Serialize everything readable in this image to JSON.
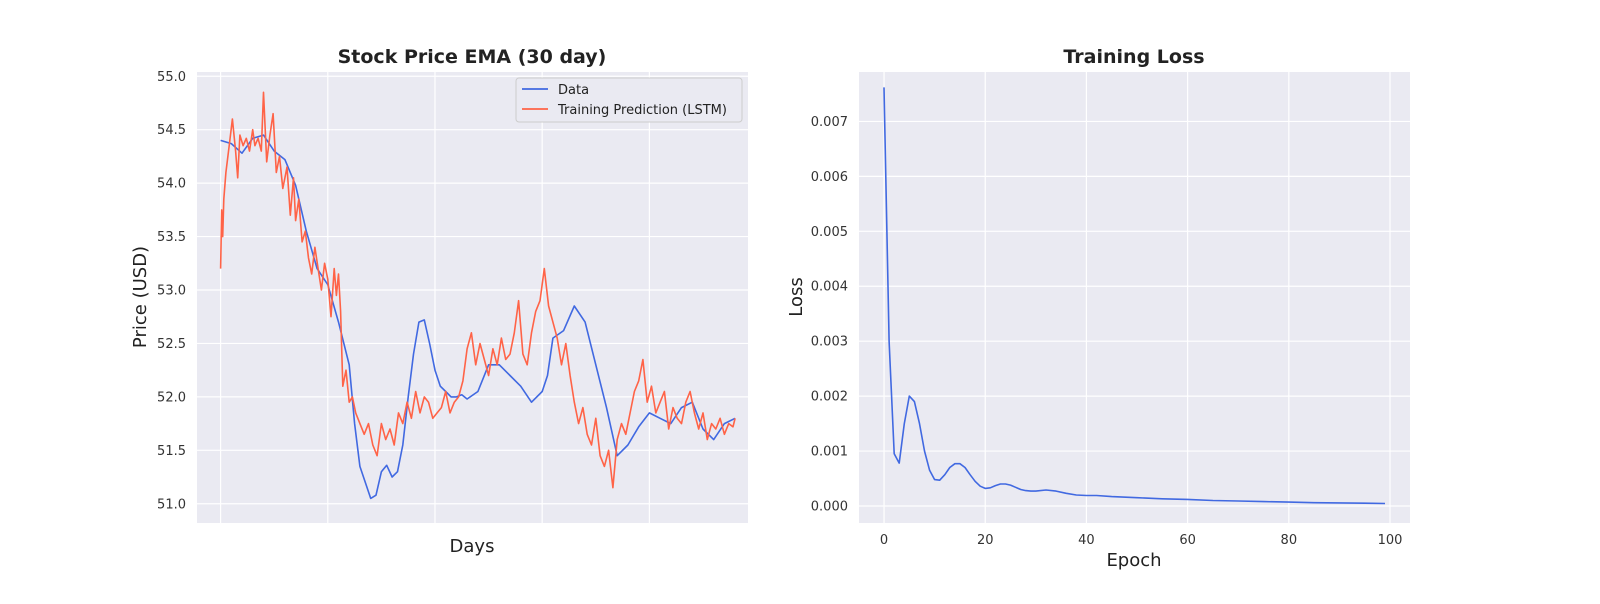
{
  "chart_data": [
    {
      "type": "line",
      "title": "Stock Price EMA (30 day)",
      "xlabel": "Days",
      "ylabel": "Price (USD)",
      "ylim": [
        50.82,
        55.04
      ],
      "xlim": [
        -22,
        492
      ],
      "yticks": [
        "51.0",
        "51.5",
        "52.0",
        "52.5",
        "53.0",
        "53.5",
        "54.0",
        "54.5",
        "55.0"
      ],
      "ytick_values": [
        51.0,
        51.5,
        52.0,
        52.5,
        53.0,
        53.5,
        54.0,
        54.5,
        55.0
      ],
      "xgrid_values": [
        0,
        100,
        200,
        300,
        400
      ],
      "grid": true,
      "legend": "top-right",
      "series": [
        {
          "name": "Data",
          "color": "#4169E1",
          "x": [
            0,
            10,
            20,
            30,
            40,
            50,
            60,
            70,
            80,
            90,
            100,
            110,
            120,
            125,
            130,
            140,
            145,
            150,
            155,
            160,
            165,
            170,
            175,
            180,
            185,
            190,
            195,
            200,
            205,
            210,
            215,
            220,
            225,
            230,
            240,
            250,
            260,
            270,
            280,
            290,
            300,
            305,
            310,
            320,
            330,
            340,
            350,
            360,
            370,
            380,
            390,
            400,
            410,
            420,
            430,
            440,
            450,
            460,
            470,
            480
          ],
          "values": [
            54.4,
            54.37,
            54.28,
            54.42,
            54.45,
            54.3,
            54.22,
            53.98,
            53.55,
            53.2,
            53.05,
            52.7,
            52.3,
            51.75,
            51.35,
            51.05,
            51.08,
            51.3,
            51.36,
            51.25,
            51.3,
            51.55,
            52.0,
            52.4,
            52.7,
            52.72,
            52.5,
            52.25,
            52.1,
            52.05,
            52.0,
            52.0,
            52.02,
            51.98,
            52.05,
            52.3,
            52.3,
            52.2,
            52.1,
            51.95,
            52.05,
            52.2,
            52.55,
            52.62,
            52.85,
            52.7,
            52.3,
            51.9,
            51.45,
            51.55,
            51.72,
            51.85,
            51.8,
            51.75,
            51.9,
            51.95,
            51.7,
            51.6,
            51.75,
            51.8
          ]
        },
        {
          "name": "Training Prediction (LSTM)",
          "color": "#FF6347",
          "x": [
            0,
            1,
            2,
            3,
            5,
            8,
            11,
            14,
            16,
            18,
            21,
            24,
            27,
            30,
            32,
            35,
            38,
            40,
            43,
            46,
            49,
            52,
            55,
            58,
            62,
            65,
            68,
            70,
            73,
            76,
            79,
            82,
            85,
            88,
            91,
            94,
            97,
            100,
            103,
            106,
            108,
            110,
            112,
            114,
            117,
            120,
            123,
            126,
            130,
            134,
            138,
            142,
            146,
            150,
            154,
            158,
            162,
            166,
            170,
            174,
            178,
            182,
            186,
            190,
            194,
            198,
            202,
            206,
            210,
            214,
            218,
            222,
            226,
            230,
            234,
            238,
            242,
            246,
            250,
            254,
            258,
            262,
            266,
            270,
            274,
            278,
            282,
            286,
            290,
            294,
            298,
            302,
            306,
            310,
            314,
            318,
            322,
            326,
            330,
            334,
            338,
            342,
            346,
            350,
            354,
            358,
            362,
            366,
            370,
            374,
            378,
            382,
            386,
            390,
            394,
            398,
            402,
            406,
            410,
            414,
            418,
            422,
            426,
            430,
            434,
            438,
            442,
            446,
            450,
            454,
            458,
            462,
            466,
            470,
            474,
            478,
            480
          ],
          "values": [
            53.2,
            53.75,
            53.5,
            53.85,
            54.1,
            54.35,
            54.6,
            54.3,
            54.05,
            54.45,
            54.35,
            54.42,
            54.3,
            54.5,
            54.35,
            54.42,
            54.3,
            54.85,
            54.2,
            54.45,
            54.65,
            54.1,
            54.25,
            53.95,
            54.15,
            53.7,
            54.05,
            53.65,
            53.85,
            53.45,
            53.55,
            53.3,
            53.15,
            53.4,
            53.2,
            53.0,
            53.25,
            53.1,
            52.75,
            53.2,
            52.95,
            53.15,
            52.8,
            52.1,
            52.25,
            51.95,
            52.0,
            51.85,
            51.75,
            51.65,
            51.75,
            51.55,
            51.45,
            51.75,
            51.6,
            51.7,
            51.55,
            51.85,
            51.75,
            51.95,
            51.8,
            52.05,
            51.85,
            52.0,
            51.95,
            51.8,
            51.85,
            51.9,
            52.05,
            51.85,
            51.95,
            52.0,
            52.15,
            52.45,
            52.6,
            52.3,
            52.5,
            52.35,
            52.2,
            52.45,
            52.3,
            52.55,
            52.35,
            52.4,
            52.6,
            52.9,
            52.4,
            52.3,
            52.6,
            52.8,
            52.9,
            53.2,
            52.85,
            52.7,
            52.55,
            52.3,
            52.5,
            52.2,
            51.95,
            51.75,
            51.9,
            51.65,
            51.55,
            51.8,
            51.45,
            51.35,
            51.5,
            51.15,
            51.6,
            51.75,
            51.65,
            51.85,
            52.05,
            52.15,
            52.35,
            51.95,
            52.1,
            51.85,
            51.95,
            52.05,
            51.7,
            51.9,
            51.8,
            51.75,
            51.95,
            52.05,
            51.85,
            51.7,
            51.85,
            51.6,
            51.75,
            51.7,
            51.8,
            51.65,
            51.75,
            51.72,
            51.8
          ]
        }
      ]
    },
    {
      "type": "line",
      "title": "Training Loss",
      "xlabel": "Epoch",
      "ylabel": "Loss",
      "xlim": [
        -4.95,
        103.95
      ],
      "ylim": [
        -0.00031,
        0.0079
      ],
      "xticks": [
        "0",
        "20",
        "40",
        "60",
        "80",
        "100"
      ],
      "xtick_values": [
        0,
        20,
        40,
        60,
        80,
        100
      ],
      "yticks": [
        "0.000",
        "0.001",
        "0.002",
        "0.003",
        "0.004",
        "0.005",
        "0.006",
        "0.007"
      ],
      "ytick_values": [
        0.0,
        0.001,
        0.002,
        0.003,
        0.004,
        0.005,
        0.006,
        0.007
      ],
      "grid": true,
      "series": [
        {
          "color": "#4169E1",
          "x": [
            0,
            1,
            2,
            3,
            4,
            5,
            6,
            7,
            8,
            9,
            10,
            11,
            12,
            13,
            14,
            15,
            16,
            17,
            18,
            19,
            20,
            21,
            22,
            23,
            24,
            25,
            26,
            27,
            28,
            29,
            30,
            32,
            34,
            36,
            38,
            40,
            42,
            45,
            50,
            55,
            60,
            65,
            70,
            75,
            80,
            85,
            90,
            95,
            99
          ],
          "values": [
            0.00762,
            0.003,
            0.00095,
            0.00078,
            0.0015,
            0.002,
            0.0019,
            0.0015,
            0.001,
            0.00065,
            0.00048,
            0.00047,
            0.00057,
            0.0007,
            0.00077,
            0.00077,
            0.0007,
            0.00057,
            0.00045,
            0.00036,
            0.00032,
            0.00033,
            0.00037,
            0.0004,
            0.0004,
            0.00038,
            0.00034,
            0.0003,
            0.00028,
            0.00027,
            0.00027,
            0.00029,
            0.00027,
            0.00023,
            0.0002,
            0.00019,
            0.00019,
            0.00017,
            0.00015,
            0.00013,
            0.00012,
            0.0001,
            9e-05,
            8e-05,
            7e-05,
            6e-05,
            5.5e-05,
            5e-05,
            4.5e-05
          ]
        }
      ]
    }
  ]
}
